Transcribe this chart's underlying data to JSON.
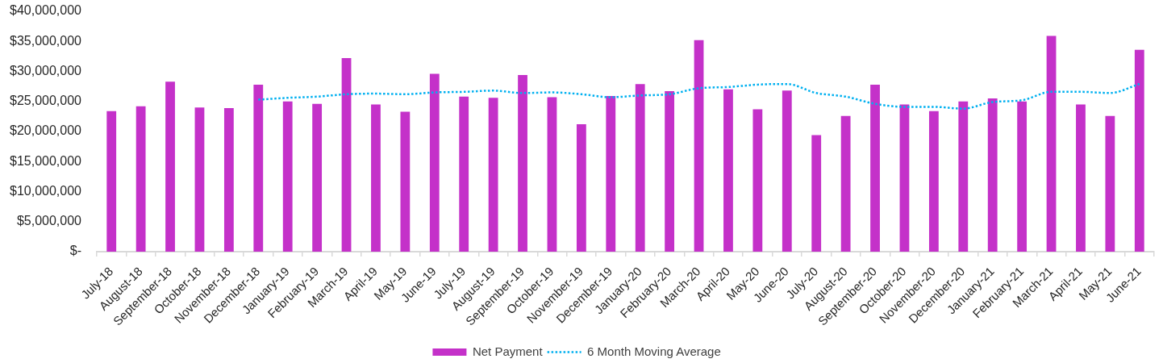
{
  "chart_data": {
    "type": "bar",
    "categories": [
      "July-18",
      "August-18",
      "September-18",
      "October-18",
      "November-18",
      "December-18",
      "January-19",
      "February-19",
      "March-19",
      "April-19",
      "May-19",
      "June-19",
      "July-19",
      "August-19",
      "September-19",
      "October-19",
      "November-19",
      "December-19",
      "January-20",
      "February-20",
      "March-20",
      "April-20",
      "May-20",
      "June-20",
      "July-20",
      "August-20",
      "September-20",
      "October-20",
      "November-20",
      "December-20",
      "January-21",
      "February-21",
      "March-21",
      "April-21",
      "May-21",
      "June-21"
    ],
    "series": [
      {
        "name": "Net Payment",
        "color": "#c431c9",
        "values": [
          23400000,
          24200000,
          28300000,
          24000000,
          23900000,
          27800000,
          25000000,
          24600000,
          32200000,
          24500000,
          23300000,
          29600000,
          25800000,
          25600000,
          29400000,
          25700000,
          21200000,
          25900000,
          27900000,
          26700000,
          35200000,
          27000000,
          23700000,
          26800000,
          19400000,
          22600000,
          27800000,
          24500000,
          23400000,
          25000000,
          25500000,
          25000000,
          35900000,
          24500000,
          22600000,
          33600000
        ]
      },
      {
        "name": "6 Month Moving Average",
        "type": "line",
        "color": "#00b0f0",
        "line_style": "dotted",
        "values": [
          null,
          null,
          null,
          null,
          null,
          25300000,
          25600000,
          25800000,
          26200000,
          26300000,
          26200000,
          26500000,
          26600000,
          26800000,
          26400000,
          26500000,
          26200000,
          25700000,
          26000000,
          26200000,
          27200000,
          27400000,
          27800000,
          27900000,
          26400000,
          25800000,
          24600000,
          24100000,
          24100000,
          23800000,
          24900000,
          25200000,
          26600000,
          26600000,
          26400000,
          27900000
        ]
      }
    ],
    "ylim": [
      0,
      40000000
    ],
    "yticks": [
      {
        "value": 0,
        "label": "$-"
      },
      {
        "value": 5000000,
        "label": "$5,000,000"
      },
      {
        "value": 10000000,
        "label": "$10,000,000"
      },
      {
        "value": 15000000,
        "label": "$15,000,000"
      },
      {
        "value": 20000000,
        "label": "$20,000,000"
      },
      {
        "value": 25000000,
        "label": "$25,000,000"
      },
      {
        "value": 30000000,
        "label": "$30,000,000"
      },
      {
        "value": 35000000,
        "label": "$35,000,000"
      },
      {
        "value": 40000000,
        "label": "$40,000,000"
      }
    ],
    "grid": false,
    "legend": "bottom",
    "marker": "none"
  }
}
